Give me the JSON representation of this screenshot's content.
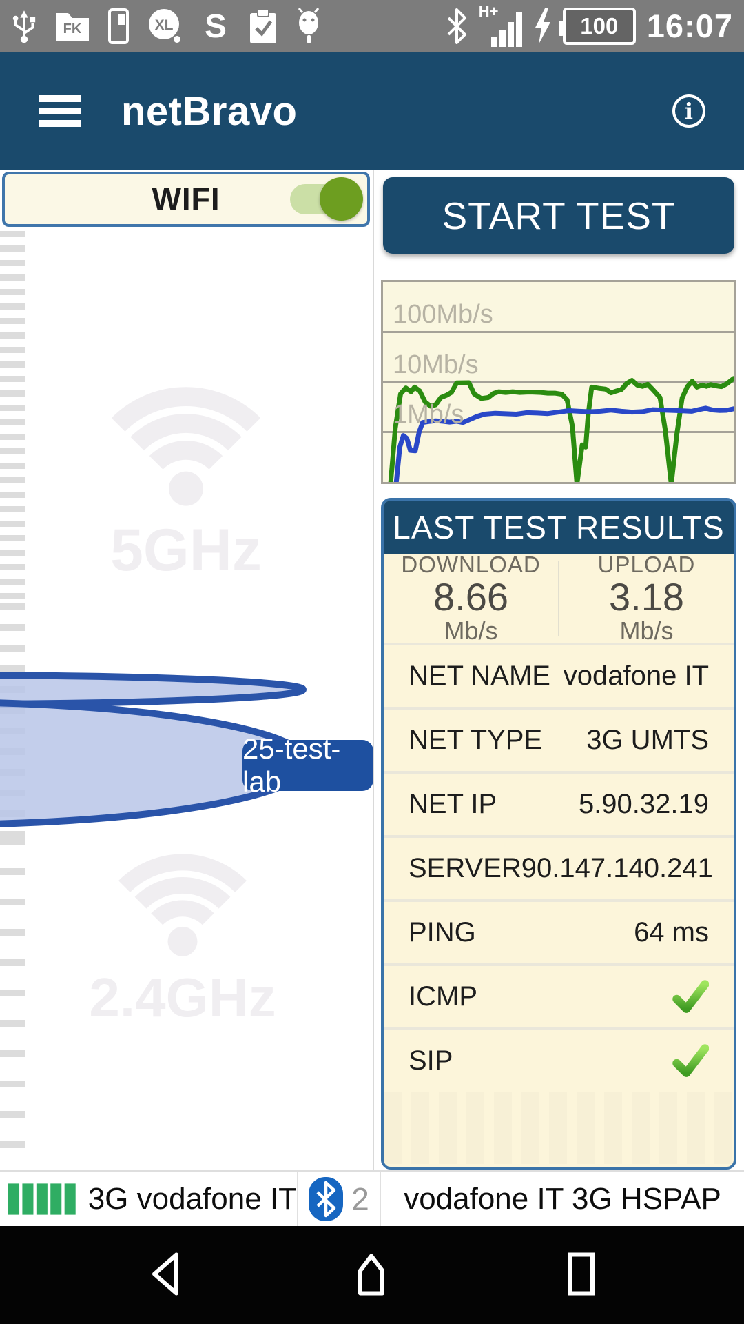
{
  "status_bar": {
    "time": "16:07",
    "battery_level": "100",
    "signal_type": "H+",
    "folder_label": "FK",
    "xl_label": "XL",
    "s_label": "S",
    "icons": [
      "usb-icon",
      "folder-icon",
      "phone-icon",
      "xl-circle-icon",
      "s-app-icon",
      "clipboard-check-icon",
      "android-icon",
      "bluetooth-icon",
      "mobile-signal-icon",
      "charging-icon",
      "battery-icon"
    ]
  },
  "app_bar": {
    "title": "netBravo"
  },
  "wifi_panel": {
    "label": "WIFI",
    "toggle_on": true
  },
  "left_panel": {
    "band_5ghz_label": "5GHz",
    "band_24ghz_label": "2.4GHz",
    "network_label": "25-test-lab"
  },
  "right_panel": {
    "start_test_label": "START TEST"
  },
  "chart_data": {
    "type": "line",
    "title": "",
    "xlabel": "",
    "ylabel": "",
    "y_scale": "log",
    "y_range": [
      0.1,
      1000
    ],
    "grid": true,
    "y_ticks": [
      {
        "label": "100Mb/s",
        "value": 100
      },
      {
        "label": "10Mb/s",
        "value": 10
      },
      {
        "label": "1Mb/s",
        "value": 1
      }
    ],
    "series": [
      {
        "name": "download",
        "color": "#2b8c10",
        "unit": "Mb/s",
        "points": [
          [
            0.022,
            0.1
          ],
          [
            0.035,
            1.2
          ],
          [
            0.05,
            5.8
          ],
          [
            0.065,
            7.6
          ],
          [
            0.08,
            6.4
          ],
          [
            0.09,
            7.9
          ],
          [
            0.105,
            6.6
          ],
          [
            0.12,
            4.0
          ],
          [
            0.135,
            3.3
          ],
          [
            0.15,
            3.5
          ],
          [
            0.165,
            4.9
          ],
          [
            0.18,
            5.4
          ],
          [
            0.195,
            6.2
          ],
          [
            0.21,
            9.6
          ],
          [
            0.245,
            9.7
          ],
          [
            0.26,
            5.8
          ],
          [
            0.28,
            4.7
          ],
          [
            0.3,
            4.9
          ],
          [
            0.315,
            5.9
          ],
          [
            0.33,
            6.4
          ],
          [
            0.35,
            6.2
          ],
          [
            0.37,
            6.4
          ],
          [
            0.39,
            6.2
          ],
          [
            0.42,
            6.3
          ],
          [
            0.45,
            6.2
          ],
          [
            0.47,
            6.0
          ],
          [
            0.49,
            6.0
          ],
          [
            0.51,
            5.7
          ],
          [
            0.525,
            4.4
          ],
          [
            0.54,
            1.3
          ],
          [
            0.553,
            0.09
          ],
          [
            0.568,
            0.55
          ],
          [
            0.578,
            0.5
          ],
          [
            0.585,
            2.2
          ],
          [
            0.595,
            7.9
          ],
          [
            0.615,
            7.5
          ],
          [
            0.635,
            7.2
          ],
          [
            0.65,
            6.1
          ],
          [
            0.665,
            6.6
          ],
          [
            0.68,
            7.1
          ],
          [
            0.695,
            9.4
          ],
          [
            0.71,
            10.8
          ],
          [
            0.725,
            8.7
          ],
          [
            0.74,
            8.2
          ],
          [
            0.755,
            9.0
          ],
          [
            0.77,
            7.0
          ],
          [
            0.79,
            4.9
          ],
          [
            0.805,
            1.1
          ],
          [
            0.822,
            0.09
          ],
          [
            0.838,
            0.9
          ],
          [
            0.853,
            4.8
          ],
          [
            0.868,
            8.1
          ],
          [
            0.882,
            10.4
          ],
          [
            0.895,
            7.9
          ],
          [
            0.91,
            8.7
          ],
          [
            0.922,
            8.2
          ],
          [
            0.934,
            8.9
          ],
          [
            0.95,
            8.4
          ],
          [
            0.965,
            8.1
          ],
          [
            0.98,
            9.2
          ],
          [
            1.0,
            11.8
          ]
        ]
      },
      {
        "name": "upload",
        "color": "#2948c8",
        "unit": "Mb/s",
        "points": [
          [
            0.038,
            0.1
          ],
          [
            0.048,
            0.5
          ],
          [
            0.058,
            0.85
          ],
          [
            0.068,
            0.75
          ],
          [
            0.078,
            0.43
          ],
          [
            0.092,
            0.42
          ],
          [
            0.103,
            1.0
          ],
          [
            0.113,
            1.55
          ],
          [
            0.13,
            1.62
          ],
          [
            0.15,
            1.68
          ],
          [
            0.17,
            1.64
          ],
          [
            0.19,
            1.58
          ],
          [
            0.21,
            1.64
          ],
          [
            0.228,
            1.55
          ],
          [
            0.248,
            1.78
          ],
          [
            0.268,
            2.05
          ],
          [
            0.29,
            2.28
          ],
          [
            0.32,
            2.38
          ],
          [
            0.35,
            2.33
          ],
          [
            0.38,
            2.28
          ],
          [
            0.41,
            2.44
          ],
          [
            0.44,
            2.4
          ],
          [
            0.47,
            2.34
          ],
          [
            0.5,
            2.5
          ],
          [
            0.53,
            2.68
          ],
          [
            0.56,
            2.6
          ],
          [
            0.59,
            2.55
          ],
          [
            0.62,
            2.6
          ],
          [
            0.65,
            2.74
          ],
          [
            0.68,
            2.6
          ],
          [
            0.71,
            2.5
          ],
          [
            0.74,
            2.56
          ],
          [
            0.77,
            2.8
          ],
          [
            0.8,
            2.74
          ],
          [
            0.83,
            2.7
          ],
          [
            0.86,
            2.64
          ],
          [
            0.88,
            2.6
          ],
          [
            0.9,
            2.8
          ],
          [
            0.92,
            3.0
          ],
          [
            0.94,
            2.76
          ],
          [
            0.96,
            2.7
          ],
          [
            0.98,
            2.72
          ],
          [
            1.0,
            2.92
          ]
        ]
      }
    ]
  },
  "results": {
    "title": "LAST TEST RESULTS",
    "download": {
      "label": "DOWNLOAD",
      "value": "8.66",
      "unit": "Mb/s"
    },
    "upload": {
      "label": "UPLOAD",
      "value": "3.18",
      "unit": "Mb/s"
    },
    "rows": [
      {
        "label": "NET NAME",
        "value": "vodafone IT"
      },
      {
        "label": "NET TYPE",
        "value": "3G UMTS"
      },
      {
        "label": "NET IP",
        "value": "5.90.32.19"
      },
      {
        "label": "SERVER",
        "value": "90.147.140.241"
      },
      {
        "label": "PING",
        "value": "64 ms"
      },
      {
        "label": "ICMP",
        "value": "pass"
      },
      {
        "label": "SIP",
        "value": "pass"
      }
    ]
  },
  "bottom_bar": {
    "mobile_network": "3G vodafone IT",
    "bluetooth_count": "2",
    "connection": "vodafone IT 3G HSPAP"
  },
  "colors": {
    "header_blue": "#1a4a6c",
    "panel_cream": "#fcf5da",
    "panel_border_blue": "#3a73a9",
    "download_green": "#2b8c10",
    "upload_blue": "#2948c8",
    "toggle_green": "#6d9e20",
    "check_green": "#46a926",
    "signal_bar_green": "#2fad63",
    "bluetooth_blue": "#1666c1",
    "network_bubble_blue": "#1e50a0"
  }
}
